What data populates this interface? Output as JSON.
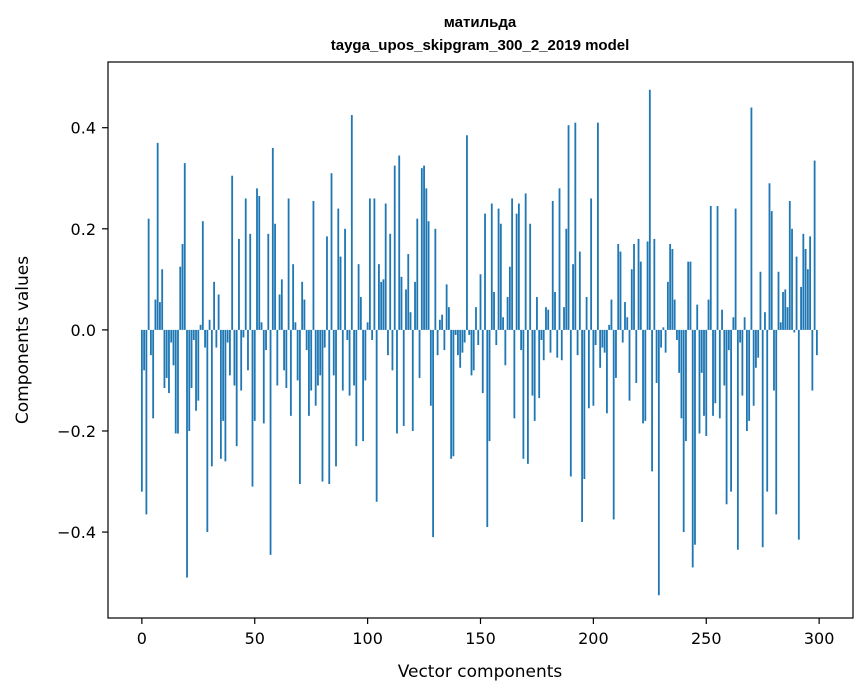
{
  "chart_data": {
    "type": "bar",
    "title": "матильда",
    "subtitle": "tayga_upos_skipgram_300_2_2019 model",
    "xlabel": "Vector components",
    "ylabel": "Components values",
    "xlim": [
      -15,
      315
    ],
    "ylim": [
      -0.57,
      0.53
    ],
    "xticks": [
      0,
      50,
      100,
      150,
      200,
      250,
      300
    ],
    "xtick_labels": [
      "0",
      "50",
      "100",
      "150",
      "200",
      "250",
      "300"
    ],
    "yticks": [
      -0.4,
      -0.2,
      0.0,
      0.2,
      0.4
    ],
    "ytick_labels": [
      "−0.4",
      "−0.2",
      "0.0",
      "0.2",
      "0.4"
    ],
    "bar_color": "#1f77b4",
    "x": [
      0,
      1,
      2,
      3,
      4,
      5,
      6,
      7,
      8,
      9,
      10,
      11,
      12,
      13,
      14,
      15,
      16,
      17,
      18,
      19,
      20,
      21,
      22,
      23,
      24,
      25,
      26,
      27,
      28,
      29,
      30,
      31,
      32,
      33,
      34,
      35,
      36,
      37,
      38,
      39,
      40,
      41,
      42,
      43,
      44,
      45,
      46,
      47,
      48,
      49,
      50,
      51,
      52,
      53,
      54,
      55,
      56,
      57,
      58,
      59,
      60,
      61,
      62,
      63,
      64,
      65,
      66,
      67,
      68,
      69,
      70,
      71,
      72,
      73,
      74,
      75,
      76,
      77,
      78,
      79,
      80,
      81,
      82,
      83,
      84,
      85,
      86,
      87,
      88,
      89,
      90,
      91,
      92,
      93,
      94,
      95,
      96,
      97,
      98,
      99,
      100,
      101,
      102,
      103,
      104,
      105,
      106,
      107,
      108,
      109,
      110,
      111,
      112,
      113,
      114,
      115,
      116,
      117,
      118,
      119,
      120,
      121,
      122,
      123,
      124,
      125,
      126,
      127,
      128,
      129,
      130,
      131,
      132,
      133,
      134,
      135,
      136,
      137,
      138,
      139,
      140,
      141,
      142,
      143,
      144,
      145,
      146,
      147,
      148,
      149,
      150,
      151,
      152,
      153,
      154,
      155,
      156,
      157,
      158,
      159,
      160,
      161,
      162,
      163,
      164,
      165,
      166,
      167,
      168,
      169,
      170,
      171,
      172,
      173,
      174,
      175,
      176,
      177,
      178,
      179,
      180,
      181,
      182,
      183,
      184,
      185,
      186,
      187,
      188,
      189,
      190,
      191,
      192,
      193,
      194,
      195,
      196,
      197,
      198,
      199,
      200,
      201,
      202,
      203,
      204,
      205,
      206,
      207,
      208,
      209,
      210,
      211,
      212,
      213,
      214,
      215,
      216,
      217,
      218,
      219,
      220,
      221,
      222,
      223,
      224,
      225,
      226,
      227,
      228,
      229,
      230,
      231,
      232,
      233,
      234,
      235,
      236,
      237,
      238,
      239,
      240,
      241,
      242,
      243,
      244,
      245,
      246,
      247,
      248,
      249,
      250,
      251,
      252,
      253,
      254,
      255,
      256,
      257,
      258,
      259,
      260,
      261,
      262,
      263,
      264,
      265,
      266,
      267,
      268,
      269,
      270,
      271,
      272,
      273,
      274,
      275,
      276,
      277,
      278,
      279,
      280,
      281,
      282,
      283,
      284,
      285,
      286,
      287,
      288,
      289,
      290,
      291,
      292,
      293,
      294,
      295,
      296,
      297,
      298,
      299
    ],
    "values": [
      -0.32,
      -0.08,
      -0.365,
      0.22,
      -0.05,
      -0.175,
      0.06,
      0.37,
      0.055,
      0.12,
      -0.115,
      -0.095,
      -0.125,
      -0.025,
      -0.07,
      -0.205,
      -0.205,
      0.125,
      0.17,
      0.33,
      -0.49,
      -0.2,
      -0.115,
      -0.02,
      -0.16,
      -0.14,
      0.01,
      0.215,
      -0.035,
      -0.4,
      0.02,
      -0.27,
      0.095,
      -0.035,
      0.07,
      -0.255,
      -0.18,
      -0.26,
      -0.025,
      -0.09,
      0.305,
      -0.11,
      -0.23,
      0.18,
      -0.12,
      -0.015,
      0.26,
      -0.08,
      0.19,
      -0.31,
      -0.18,
      0.28,
      0.265,
      0.015,
      -0.185,
      -0.04,
      0.19,
      -0.445,
      0.36,
      0.21,
      -0.11,
      0.07,
      0.1,
      -0.08,
      -0.115,
      0.26,
      -0.17,
      0.13,
      0.015,
      -0.1,
      -0.305,
      0.095,
      0.06,
      -0.04,
      -0.17,
      -0.12,
      0.255,
      -0.15,
      -0.11,
      -0.09,
      -0.3,
      -0.035,
      0.185,
      -0.305,
      0.31,
      -0.09,
      -0.27,
      0.24,
      0.145,
      -0.12,
      0.2,
      -0.02,
      -0.13,
      0.425,
      -0.11,
      -0.23,
      0.13,
      0.065,
      -0.22,
      -0.1,
      0.015,
      0.26,
      -0.02,
      0.26,
      -0.34,
      0.13,
      0.095,
      0.1,
      0.25,
      -0.05,
      0.19,
      -0.08,
      0.325,
      -0.205,
      0.345,
      0.105,
      -0.19,
      0.08,
      0.15,
      0.035,
      -0.2,
      0.095,
      0.22,
      -0.095,
      0.32,
      0.325,
      0.28,
      0.215,
      -0.15,
      -0.41,
      0.2,
      -0.05,
      0.02,
      0.03,
      -0.04,
      0.09,
      0.045,
      -0.255,
      -0.25,
      -0.01,
      -0.05,
      -0.075,
      -0.045,
      -0.025,
      0.385,
      -0.01,
      -0.09,
      -0.08,
      0.045,
      -0.03,
      0.11,
      -0.125,
      0.23,
      -0.39,
      -0.22,
      0.25,
      0.075,
      -0.03,
      0.24,
      0.21,
      0.025,
      -0.07,
      0.065,
      0.125,
      0.26,
      -0.175,
      0.23,
      0.25,
      -0.04,
      -0.255,
      0.27,
      -0.265,
      0.21,
      -0.13,
      -0.18,
      0.065,
      -0.135,
      -0.02,
      -0.06,
      0.045,
      0.04,
      -0.045,
      0.255,
      0.075,
      -0.055,
      0.28,
      -0.06,
      0.045,
      0.2,
      0.405,
      -0.29,
      0.13,
      0.41,
      -0.05,
      0.155,
      -0.38,
      -0.295,
      0.065,
      -0.155,
      0.26,
      -0.15,
      -0.03,
      0.41,
      -0.075,
      -0.035,
      -0.045,
      -0.165,
      0.01,
      0.06,
      -0.375,
      -0.095,
      0.17,
      0.155,
      -0.025,
      0.055,
      0.025,
      -0.14,
      0.12,
      0.17,
      -0.105,
      0.18,
      0.135,
      -0.185,
      -0.18,
      0.175,
      0.475,
      -0.28,
      0.18,
      -0.105,
      -0.525,
      -0.035,
      0.005,
      -0.045,
      0.095,
      0.17,
      0.16,
      0.06,
      -0.02,
      -0.085,
      -0.175,
      -0.4,
      -0.22,
      0.135,
      0.135,
      -0.47,
      -0.425,
      0.05,
      -0.205,
      -0.085,
      -0.17,
      -0.21,
      0.06,
      0.245,
      -0.17,
      -0.145,
      0.245,
      -0.175,
      0.04,
      -0.11,
      -0.345,
      -0.04,
      -0.32,
      0.025,
      0.24,
      -0.435,
      -0.025,
      -0.13,
      0.025,
      -0.2,
      -0.18,
      0.44,
      -0.15,
      -0.075,
      -0.055,
      0.115,
      -0.43,
      0.035,
      -0.32,
      0.29,
      0.235,
      -0.12,
      -0.365,
      0.115,
      0.015,
      0.075,
      0.08,
      0.045,
      0.255,
      0.2,
      -0.005,
      0.145,
      -0.415,
      0.085,
      0.19,
      0.16,
      0.12,
      0.185,
      -0.12,
      0.335,
      -0.05
    ]
  }
}
